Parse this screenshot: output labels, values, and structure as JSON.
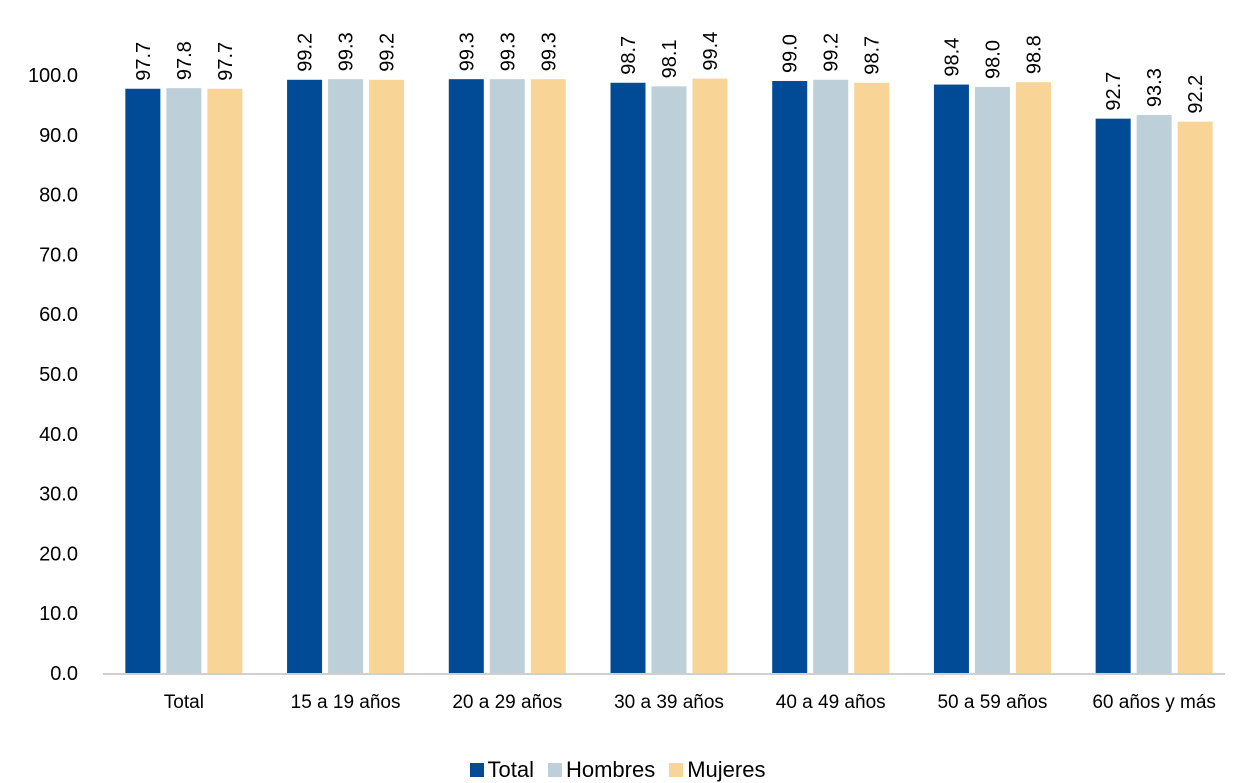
{
  "chart_data": {
    "type": "bar",
    "categories": [
      "Total",
      "15 a 19 años",
      "20 a 29 años",
      "30 a 39 años",
      "40 a 49 años",
      "50 a 59 años",
      "60 años y más"
    ],
    "series": [
      {
        "name": "Total",
        "color": "#004A96",
        "values": [
          97.7,
          99.2,
          99.3,
          98.7,
          99.0,
          98.4,
          92.7
        ]
      },
      {
        "name": "Hombres",
        "color": "#BDCFD9",
        "values": [
          97.8,
          99.3,
          99.3,
          98.1,
          99.2,
          98.0,
          93.3
        ]
      },
      {
        "name": "Mujeres",
        "color": "#F8D497",
        "values": [
          97.7,
          99.2,
          99.3,
          99.4,
          98.7,
          98.8,
          92.2
        ]
      }
    ],
    "yticks": [
      "0.0",
      "10.0",
      "20.0",
      "30.0",
      "40.0",
      "50.0",
      "60.0",
      "70.0",
      "80.0",
      "90.0",
      "100.0"
    ],
    "ylim": [
      0,
      100
    ],
    "grid": false,
    "legend_position": "bottom",
    "data_labels": "vertical, above bars"
  }
}
